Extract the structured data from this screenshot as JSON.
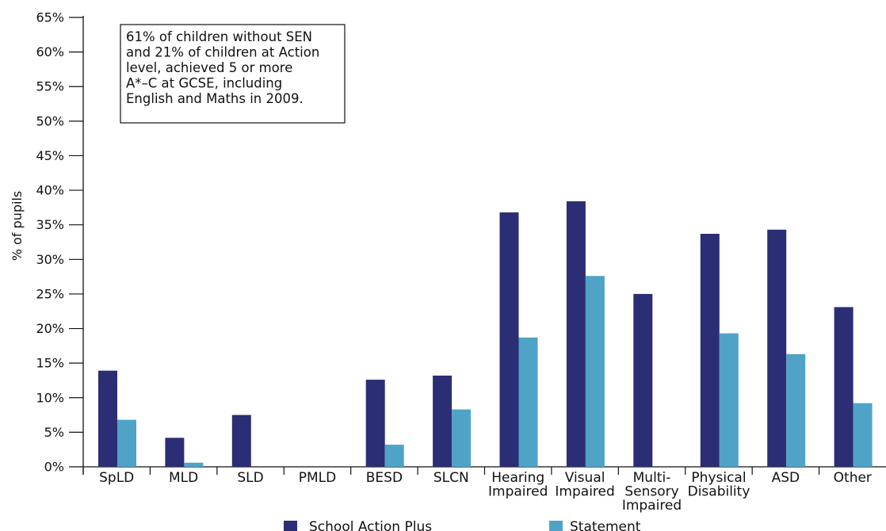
{
  "chart_data": {
    "type": "bar",
    "title": "",
    "xlabel": "",
    "ylabel": "% of pupils",
    "ylim": [
      0,
      65
    ],
    "yticks": [
      0,
      5,
      10,
      15,
      20,
      25,
      30,
      35,
      40,
      45,
      50,
      55,
      60,
      65
    ],
    "ytick_labels": [
      "0%",
      "5%",
      "10%",
      "15%",
      "20%",
      "25%",
      "30%",
      "35%",
      "40%",
      "45%",
      "50%",
      "55%",
      "60%",
      "65%"
    ],
    "grid": false,
    "legend_position": "bottom",
    "categories": [
      [
        "SpLD"
      ],
      [
        "MLD"
      ],
      [
        "SLD"
      ],
      [
        "PMLD"
      ],
      [
        "BESD"
      ],
      [
        "SLCN"
      ],
      [
        "Hearing",
        "Impaired"
      ],
      [
        "Visual",
        "Impaired"
      ],
      [
        "Multi-",
        "Sensory",
        "Impaired"
      ],
      [
        "Physical",
        "Disability"
      ],
      [
        "ASD"
      ],
      [
        "Other"
      ]
    ],
    "series": [
      {
        "name": "School Action Plus",
        "color": "#2b2e74",
        "values": [
          13.9,
          4.2,
          7.5,
          null,
          12.6,
          13.2,
          36.8,
          38.4,
          25.0,
          33.7,
          34.3,
          23.1
        ]
      },
      {
        "name": "Statement",
        "color": "#4fa3c7",
        "values": [
          6.8,
          0.6,
          null,
          null,
          3.2,
          8.3,
          18.7,
          27.6,
          null,
          19.3,
          16.3,
          9.2
        ]
      }
    ],
    "annotation": {
      "lines": [
        "61% of children without SEN",
        "and 21% of children at Action",
        "level, achieved 5 or more",
        "A*–C at GCSE, including",
        "English and Maths in 2009."
      ]
    }
  }
}
